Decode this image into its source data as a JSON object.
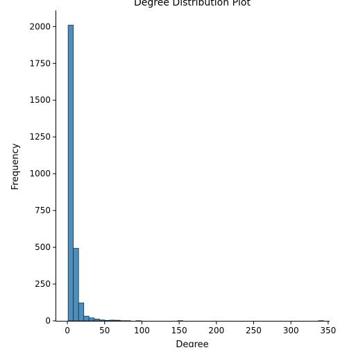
{
  "chart_data": {
    "type": "bar",
    "title": "Degree Distribution Plot",
    "xlabel": "Degree",
    "ylabel": "Frequency",
    "xlim": [
      -15,
      352
    ],
    "ylim": [
      0,
      2110
    ],
    "xticks": [
      0,
      50,
      100,
      150,
      200,
      250,
      300,
      350
    ],
    "yticks": [
      0,
      250,
      500,
      750,
      1000,
      1250,
      1500,
      1750,
      2000
    ],
    "grid": false,
    "bar_color": "#4c8fbd",
    "edge_color": "#1f2d3a",
    "bins": [
      {
        "x0": 1,
        "x1": 8,
        "count": 2010
      },
      {
        "x0": 8,
        "x1": 15,
        "count": 493
      },
      {
        "x0": 15,
        "x1": 22,
        "count": 122
      },
      {
        "x0": 22,
        "x1": 29,
        "count": 32
      },
      {
        "x0": 29,
        "x1": 36,
        "count": 20
      },
      {
        "x0": 36,
        "x1": 43,
        "count": 12
      },
      {
        "x0": 43,
        "x1": 50,
        "count": 6
      },
      {
        "x0": 50,
        "x1": 57,
        "count": 3
      },
      {
        "x0": 57,
        "x1": 64,
        "count": 5
      },
      {
        "x0": 64,
        "x1": 71,
        "count": 4
      },
      {
        "x0": 71,
        "x1": 78,
        "count": 1
      },
      {
        "x0": 78,
        "x1": 85,
        "count": 1
      },
      {
        "x0": 92,
        "x1": 99,
        "count": 1
      },
      {
        "x0": 148,
        "x1": 155,
        "count": 1
      },
      {
        "x0": 337,
        "x1": 344,
        "count": 1
      }
    ]
  }
}
